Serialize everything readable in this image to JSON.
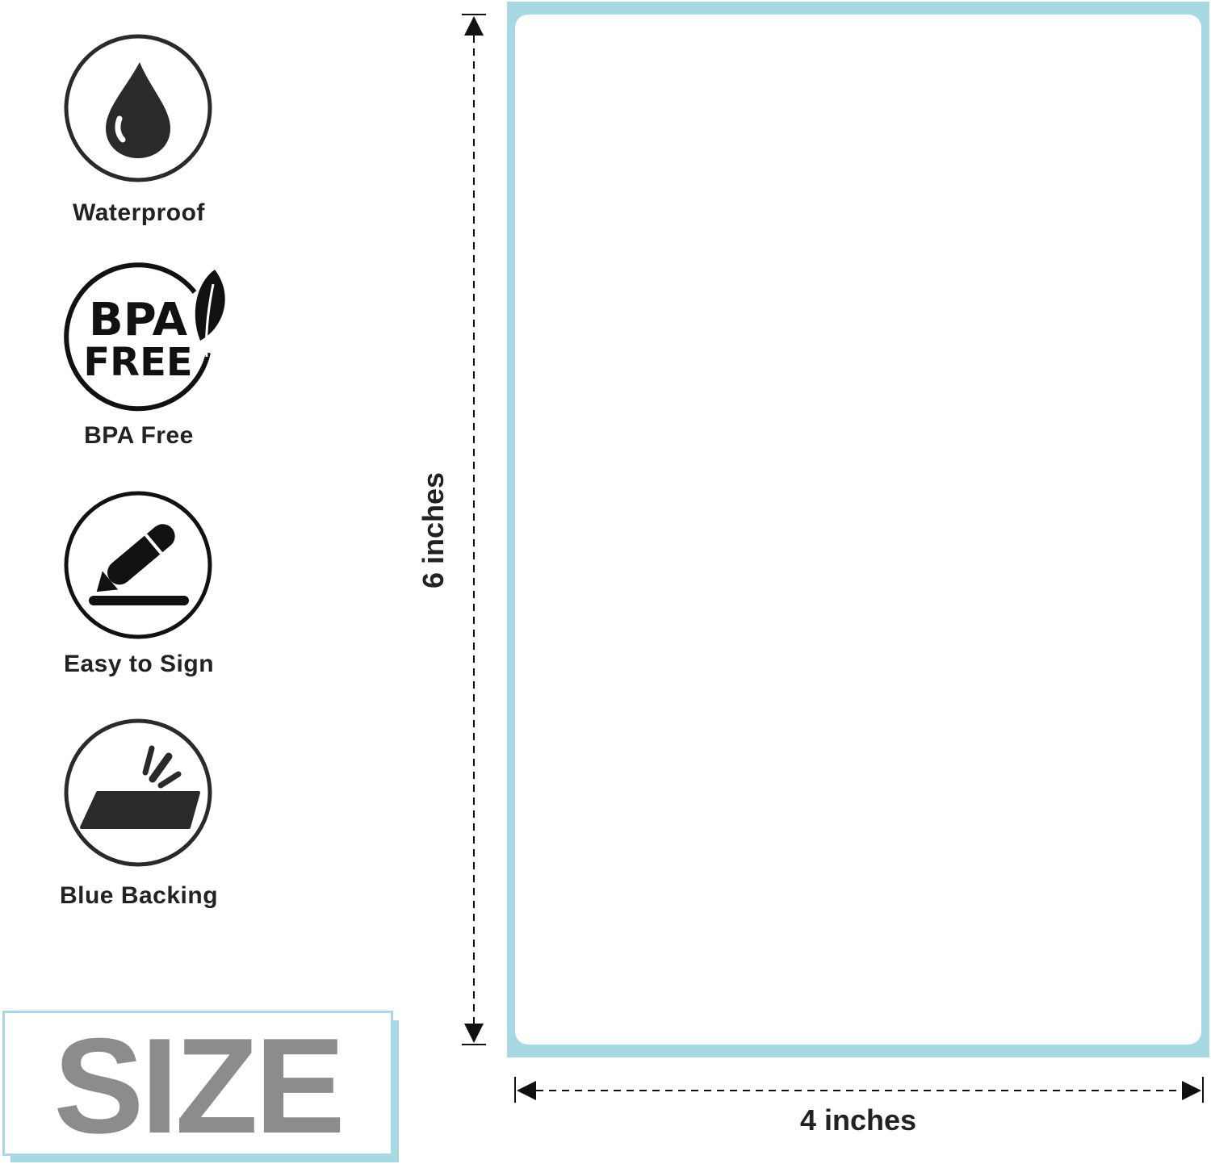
{
  "features": [
    {
      "label": "Waterproof",
      "icon": "water-drop-icon"
    },
    {
      "label": "BPA Free",
      "icon": "bpa-free-leaf-icon",
      "badge_line1": "BPA",
      "badge_line2": "FREE"
    },
    {
      "label": "Easy to Sign",
      "icon": "pen-sign-icon"
    },
    {
      "label": "Blue Backing",
      "icon": "blue-backing-peel-icon"
    }
  ],
  "size_title": "SIZE",
  "dimensions": {
    "height": "6 inches",
    "width": "4 inches"
  },
  "colors": {
    "label_backing": "#a8d8e2",
    "size_text": "#8c8c8c",
    "icon": "#2a2a2a"
  }
}
